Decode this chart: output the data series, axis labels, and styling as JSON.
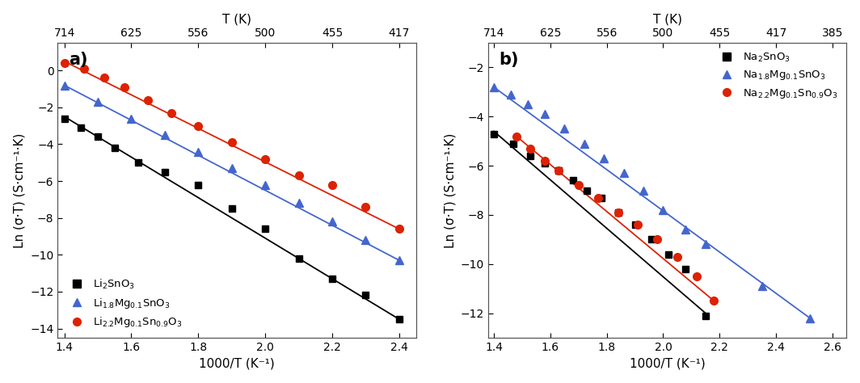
{
  "panel_a": {
    "title_label": "a)",
    "xlabel": "1000/T (K⁻¹)",
    "ylabel": "Ln (σ·T) (S·cm⁻¹·K)",
    "top_xlabel": "T (K)",
    "xlim": [
      1.38,
      2.45
    ],
    "ylim": [
      -14.5,
      1.5
    ],
    "xticks": [
      1.4,
      1.6,
      1.8,
      2.0,
      2.2,
      2.4
    ],
    "yticks": [
      0,
      -2,
      -4,
      -6,
      -8,
      -10,
      -12,
      -14
    ],
    "top_xticks": [
      1.4,
      1.6,
      1.8,
      2.0,
      2.2,
      2.4
    ],
    "top_xticklabels": [
      "714",
      "625",
      "556",
      "500",
      "455",
      "417"
    ],
    "series": [
      {
        "name": "Li$_2$SnO$_3$",
        "color": "#000000",
        "marker": "s",
        "x_data": [
          1.4,
          1.45,
          1.5,
          1.55,
          1.62,
          1.7,
          1.8,
          1.9,
          2.0,
          2.1,
          2.2,
          2.3,
          2.4
        ],
        "y_data": [
          -2.6,
          -3.1,
          -3.6,
          -4.2,
          -5.0,
          -5.5,
          -6.2,
          -7.5,
          -8.6,
          -10.2,
          -11.3,
          -12.2,
          -13.5
        ],
        "fit_x": [
          1.4,
          2.4
        ],
        "fit_y": [
          -2.5,
          -13.5
        ]
      },
      {
        "name": "Li$_{1.8}$Mg$_{0.1}$SnO$_3$",
        "color": "#4466cc",
        "marker": "^",
        "x_data": [
          1.4,
          1.5,
          1.6,
          1.7,
          1.8,
          1.9,
          2.0,
          2.1,
          2.2,
          2.3,
          2.4
        ],
        "y_data": [
          -0.8,
          -1.7,
          -2.6,
          -3.5,
          -4.4,
          -5.3,
          -6.2,
          -7.2,
          -8.2,
          -9.2,
          -10.3
        ],
        "fit_x": [
          1.4,
          2.4
        ],
        "fit_y": [
          -0.8,
          -10.3
        ]
      },
      {
        "name": "Li$_{2.2}$Mg$_{0.1}$Sn$_{0.9}$O$_3$",
        "color": "#dd2200",
        "marker": "o",
        "x_data": [
          1.4,
          1.46,
          1.52,
          1.58,
          1.65,
          1.72,
          1.8,
          1.9,
          2.0,
          2.1,
          2.2,
          2.3,
          2.4
        ],
        "y_data": [
          0.4,
          0.1,
          -0.4,
          -0.9,
          -1.6,
          -2.3,
          -3.0,
          -3.9,
          -4.8,
          -5.7,
          -6.2,
          -7.4,
          -8.6
        ],
        "fit_x": [
          1.4,
          2.4
        ],
        "fit_y": [
          0.5,
          -8.6
        ]
      }
    ],
    "legend_loc": "lower left"
  },
  "panel_b": {
    "title_label": "b)",
    "xlabel": "1000/T (K⁻¹)",
    "ylabel": "Ln (σ·T) (S·cm⁻¹·K)",
    "top_xlabel": "T (K)",
    "xlim": [
      1.38,
      2.65
    ],
    "ylim": [
      -13.0,
      -1.0
    ],
    "xticks": [
      1.4,
      1.6,
      1.8,
      2.0,
      2.2,
      2.4,
      2.6
    ],
    "yticks": [
      -2,
      -4,
      -6,
      -8,
      -10,
      -12
    ],
    "top_xticks": [
      1.4,
      1.6,
      1.8,
      2.0,
      2.2,
      2.4,
      2.6
    ],
    "top_xticklabels": [
      "714",
      "625",
      "556",
      "500",
      "455",
      "417",
      "385"
    ],
    "series": [
      {
        "name": "Na$_2$SnO$_3$",
        "color": "#000000",
        "marker": "s",
        "x_data": [
          1.4,
          1.47,
          1.53,
          1.58,
          1.63,
          1.68,
          1.73,
          1.78,
          1.84,
          1.9,
          1.96,
          2.02,
          2.08,
          2.15
        ],
        "y_data": [
          -4.7,
          -5.1,
          -5.6,
          -5.9,
          -6.2,
          -6.6,
          -7.0,
          -7.3,
          -7.9,
          -8.4,
          -9.0,
          -9.6,
          -10.2,
          -12.1
        ],
        "fit_x": [
          1.4,
          2.15
        ],
        "fit_y": [
          -4.6,
          -12.0
        ]
      },
      {
        "name": "Na$_{1.8}$Mg$_{0.1}$SnO$_3$",
        "color": "#4466cc",
        "marker": "^",
        "x_data": [
          1.4,
          1.46,
          1.52,
          1.58,
          1.65,
          1.72,
          1.79,
          1.86,
          1.93,
          2.0,
          2.08,
          2.15,
          2.35,
          2.52
        ],
        "y_data": [
          -2.8,
          -3.1,
          -3.5,
          -3.9,
          -4.5,
          -5.1,
          -5.7,
          -6.3,
          -7.0,
          -7.8,
          -8.6,
          -9.2,
          -10.9,
          -12.2
        ],
        "fit_x": [
          1.4,
          2.52
        ],
        "fit_y": [
          -2.8,
          -12.2
        ]
      },
      {
        "name": "Na$_{2.2}$Mg$_{0.1}$Sn$_{0.9}$O$_3$",
        "color": "#dd2200",
        "marker": "o",
        "x_data": [
          1.48,
          1.53,
          1.58,
          1.63,
          1.7,
          1.77,
          1.84,
          1.91,
          1.98,
          2.05,
          2.12,
          2.18
        ],
        "y_data": [
          -4.8,
          -5.3,
          -5.8,
          -6.2,
          -6.8,
          -7.3,
          -7.9,
          -8.4,
          -9.0,
          -9.7,
          -10.5,
          -11.5
        ],
        "fit_x": [
          1.48,
          2.18
        ],
        "fit_y": [
          -4.8,
          -11.5
        ]
      }
    ],
    "legend_loc": "upper right"
  }
}
